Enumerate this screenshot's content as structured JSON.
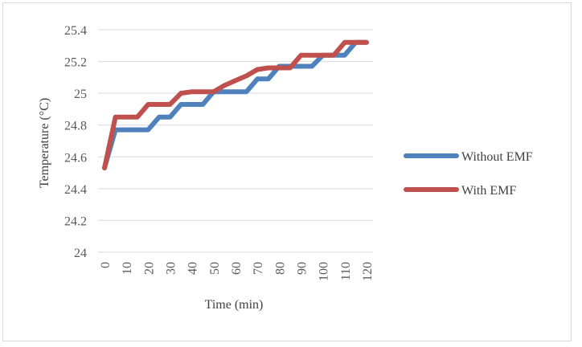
{
  "chart_data": {
    "type": "line",
    "title": "",
    "xlabel": "Time (min)",
    "ylabel": "Temperature (°C)",
    "x": [
      0,
      5,
      10,
      15,
      20,
      25,
      30,
      35,
      40,
      45,
      50,
      55,
      60,
      65,
      70,
      75,
      80,
      85,
      90,
      95,
      100,
      105,
      110,
      115,
      120
    ],
    "x_tick_labels": [
      "0",
      "10",
      "20",
      "30",
      "40",
      "50",
      "60",
      "70",
      "80",
      "90",
      "100",
      "110",
      "120"
    ],
    "y_tick_labels": [
      "24",
      "24.2",
      "24.4",
      "24.6",
      "24.8",
      "25",
      "25.2",
      "25.4"
    ],
    "ylim": [
      24,
      25.4
    ],
    "grid": true,
    "legend_position": "right",
    "series": [
      {
        "name": "Without EMF",
        "color": "#4f81bd",
        "values": [
          24.53,
          24.77,
          24.77,
          24.77,
          24.77,
          24.85,
          24.85,
          24.93,
          24.93,
          24.93,
          25.01,
          25.01,
          25.01,
          25.01,
          25.09,
          25.09,
          25.17,
          25.17,
          25.17,
          25.17,
          25.24,
          25.24,
          25.24,
          25.32,
          25.32
        ]
      },
      {
        "name": "With EMF",
        "color": "#c0504d",
        "values": [
          24.53,
          24.85,
          24.85,
          24.85,
          24.93,
          24.93,
          24.93,
          25.0,
          25.01,
          25.01,
          25.01,
          25.05,
          25.08,
          25.11,
          25.15,
          25.16,
          25.16,
          25.16,
          25.24,
          25.24,
          25.24,
          25.24,
          25.32,
          25.32,
          25.32
        ]
      }
    ]
  }
}
